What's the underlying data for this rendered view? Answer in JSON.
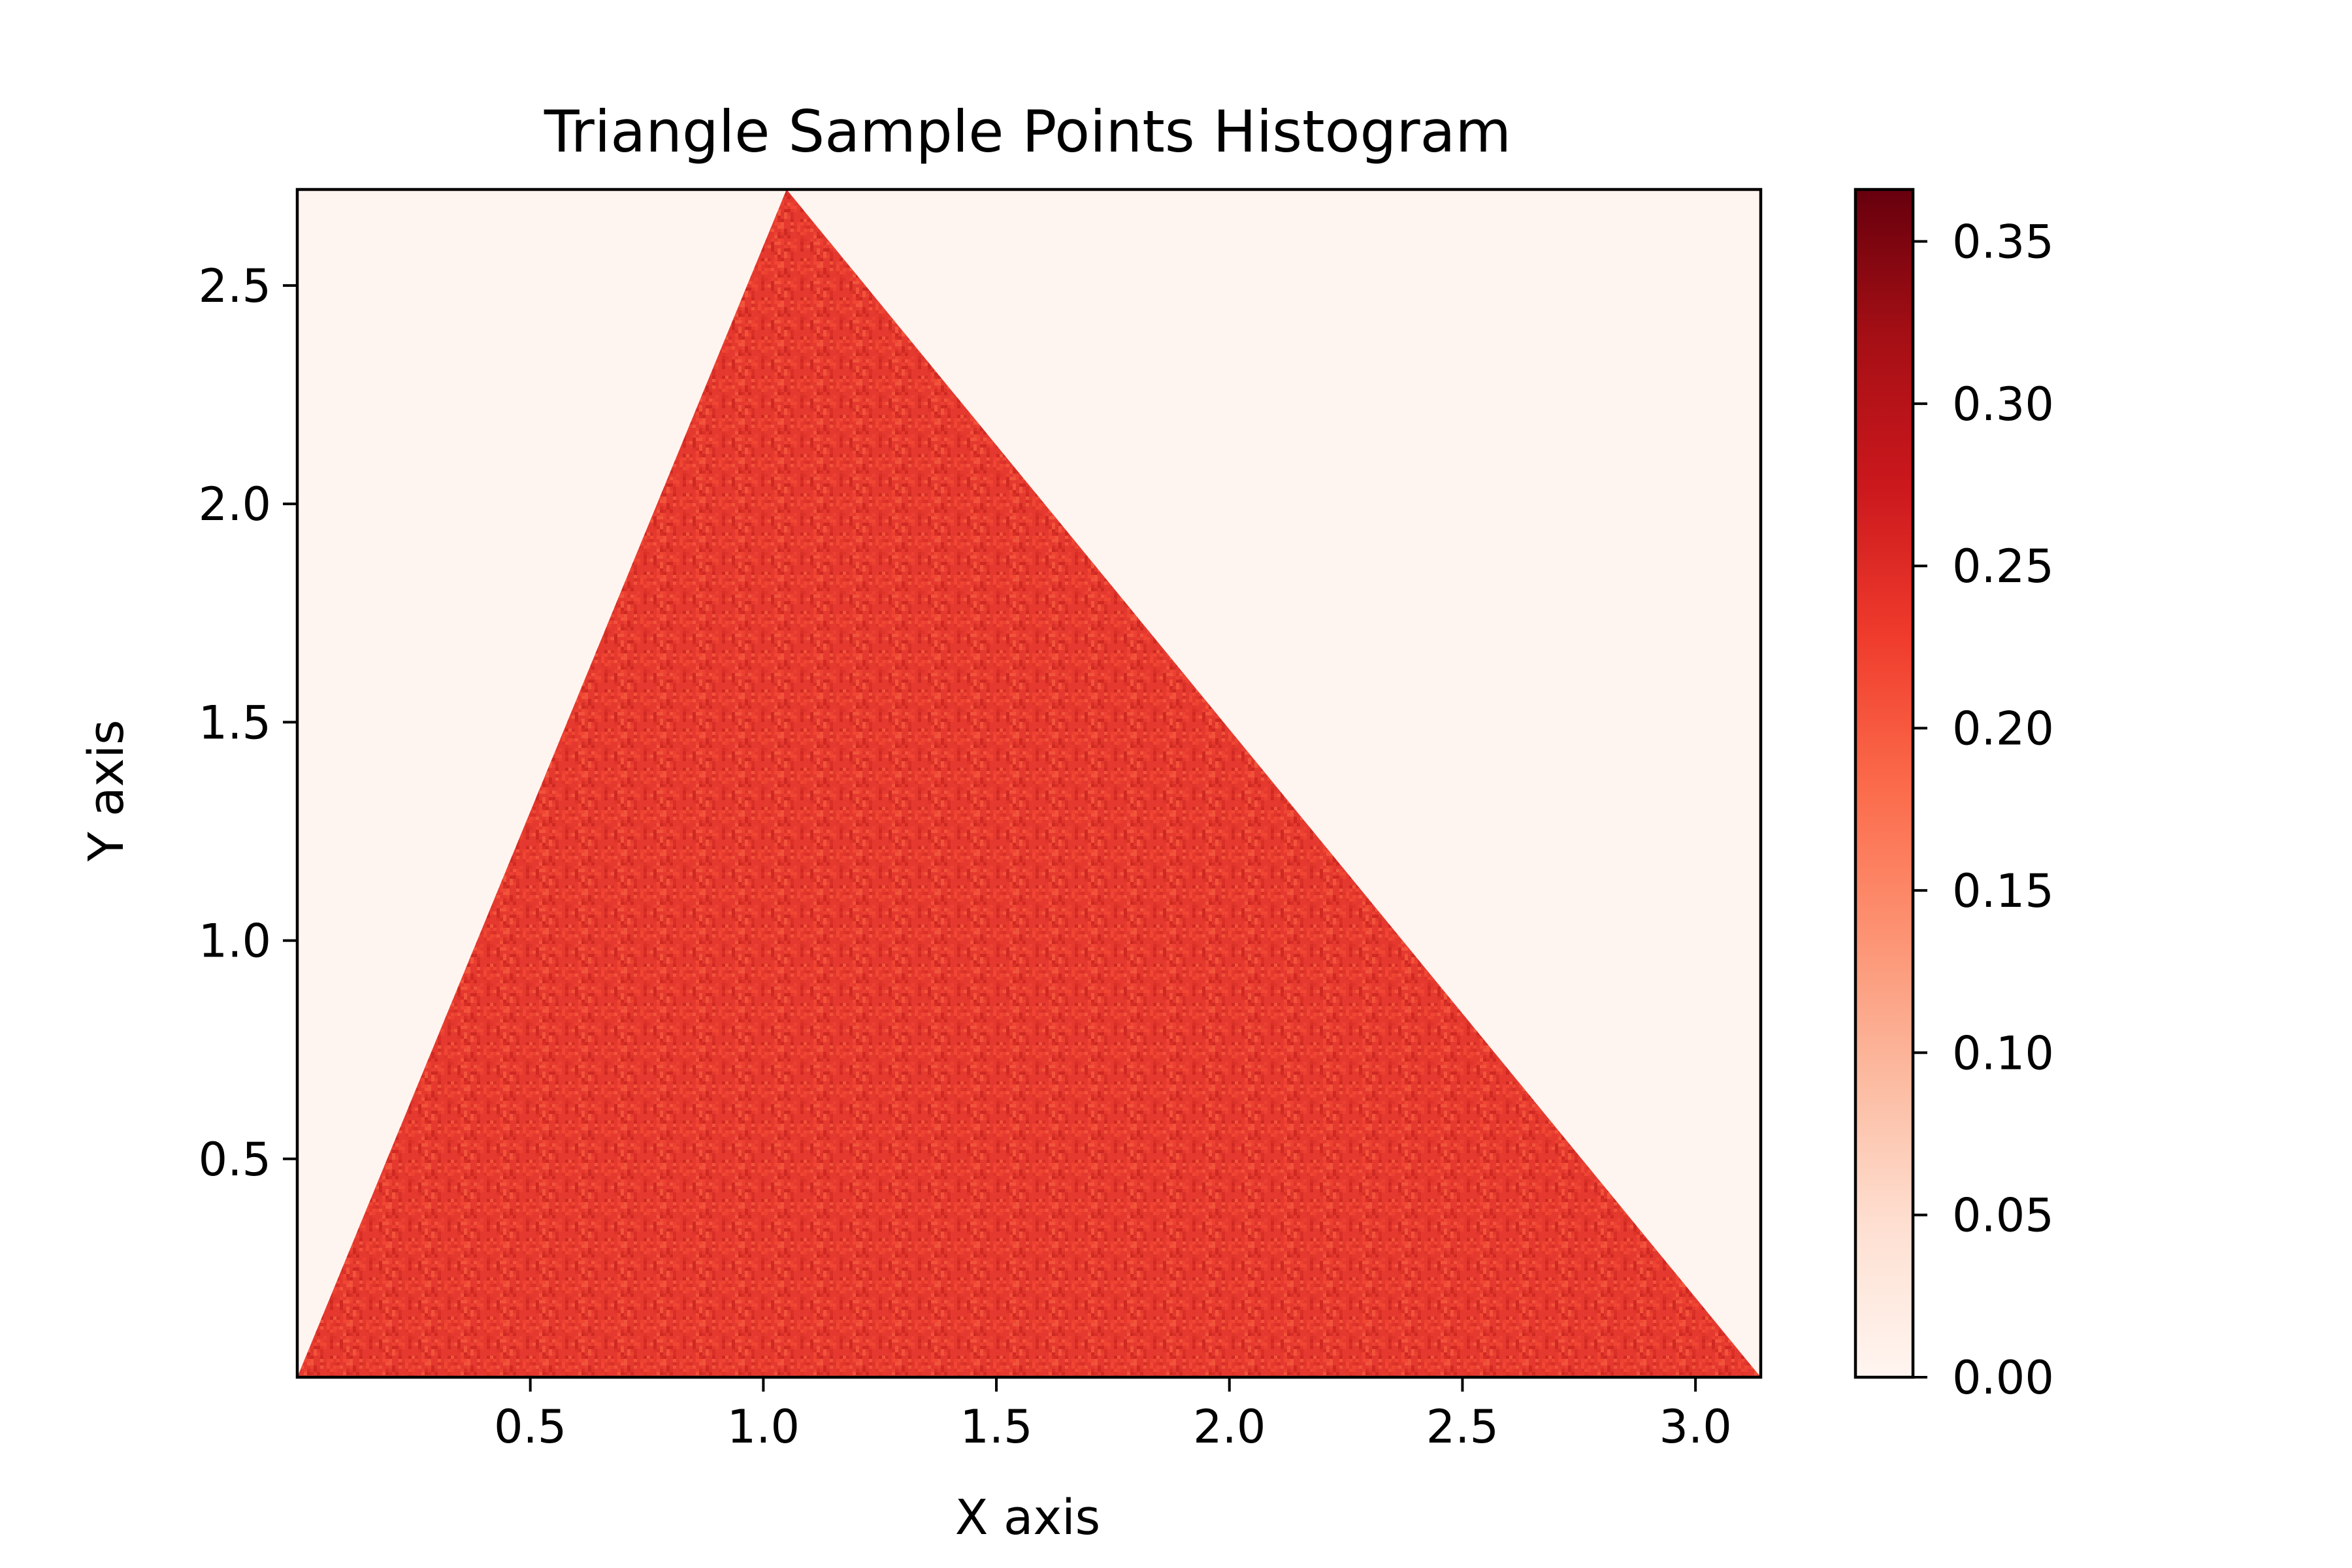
{
  "chart_data": {
    "type": "heatmap",
    "title": "Triangle Sample Points Histogram",
    "xlabel": "X axis",
    "ylabel": "Y axis",
    "xlim": [
      0.0,
      3.14
    ],
    "ylim": [
      0.0,
      2.72
    ],
    "x_ticks": [
      0.5,
      1.0,
      1.5,
      2.0,
      2.5,
      3.0
    ],
    "x_tick_labels": [
      "0.5",
      "1.0",
      "1.5",
      "2.0",
      "2.5",
      "3.0"
    ],
    "y_ticks": [
      0.5,
      1.0,
      1.5,
      2.0,
      2.5
    ],
    "y_tick_labels": [
      "0.5",
      "1.0",
      "1.5",
      "2.0",
      "2.5"
    ],
    "triangle_vertices": [
      [
        0.0,
        0.0
      ],
      [
        1.05,
        2.72
      ],
      [
        3.14,
        0.0
      ]
    ],
    "fill_density": 0.23,
    "background_density": 0.0,
    "colormap": "Reds",
    "colorbar": {
      "range": [
        0.0,
        0.366
      ],
      "ticks": [
        0.0,
        0.05,
        0.1,
        0.15,
        0.2,
        0.25,
        0.3,
        0.35
      ],
      "tick_labels": [
        "0.00",
        "0.05",
        "0.10",
        "0.15",
        "0.20",
        "0.25",
        "0.30",
        "0.35"
      ]
    },
    "colors": {
      "background": "#fff5f0",
      "fill": "#e5392f",
      "colormap_stops": [
        "#fff5f0",
        "#fee0d2",
        "#fcbba1",
        "#fc9272",
        "#fb6a4a",
        "#ef3b2c",
        "#cb181d",
        "#a50f15",
        "#67000d"
      ]
    },
    "grid": false
  }
}
